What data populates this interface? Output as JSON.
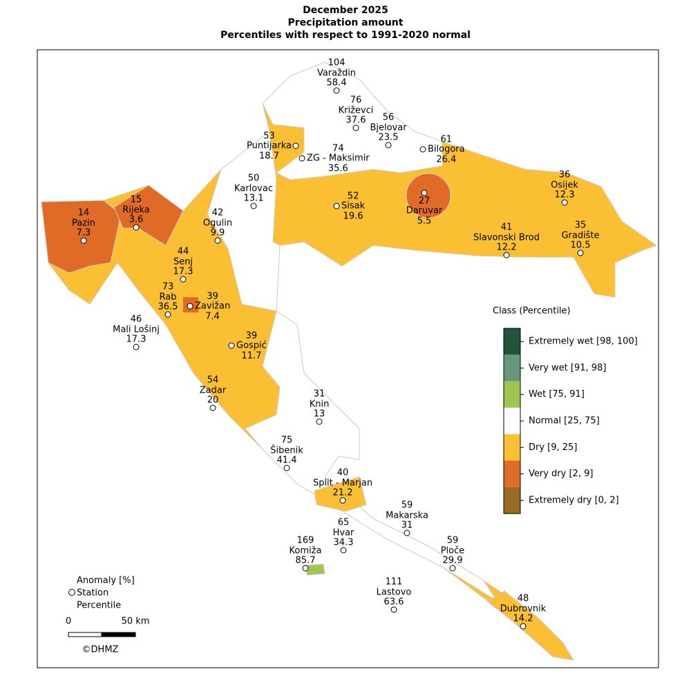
{
  "header": {
    "title": [
      "December 2025",
      "Precipitation amount",
      "Percentiles with respect to 1991-2020 normal"
    ]
  },
  "stations": [
    {
      "name": "Varaždin",
      "anomaly": "104",
      "percentile": "58.4"
    },
    {
      "name": "Križevci",
      "anomaly": "76",
      "percentile": "37.6"
    },
    {
      "name": "Bjelovar",
      "anomaly": "56",
      "percentile": "23.5"
    },
    {
      "name": "Bilogora",
      "anomaly": "61",
      "percentile": "26.4"
    },
    {
      "name": "Puntijarka",
      "anomaly": "53",
      "percentile": "18.7"
    },
    {
      "name": "ZG - Maksimir",
      "anomaly": "74",
      "percentile": "35.6"
    },
    {
      "name": "Karlovac",
      "anomaly": "50",
      "percentile": "13.1"
    },
    {
      "name": "Sisak",
      "anomaly": "52",
      "percentile": "19.6"
    },
    {
      "name": "Daruvar",
      "anomaly": "27",
      "percentile": "5.5"
    },
    {
      "name": "Osijek",
      "anomaly": "36",
      "percentile": "12.3"
    },
    {
      "name": "Slavonski Brod",
      "anomaly": "41",
      "percentile": "12.2"
    },
    {
      "name": "Gradište",
      "anomaly": "35",
      "percentile": "10.5"
    },
    {
      "name": "Rijeka",
      "anomaly": "15",
      "percentile": "3.6"
    },
    {
      "name": "Pazin",
      "anomaly": "14",
      "percentile": "7.3"
    },
    {
      "name": "Ogulin",
      "anomaly": "42",
      "percentile": "9.9"
    },
    {
      "name": "Senj",
      "anomaly": "44",
      "percentile": "17.3"
    },
    {
      "name": "Rab",
      "anomaly": "73",
      "percentile": "36.5"
    },
    {
      "name": "Zavižan",
      "anomaly": "39",
      "percentile": "7.4"
    },
    {
      "name": "Mali Lošinj",
      "anomaly": "46",
      "percentile": "17.3"
    },
    {
      "name": "Gospić",
      "anomaly": "39",
      "percentile": "11.7"
    },
    {
      "name": "Zadar",
      "anomaly": "54",
      "percentile": "20"
    },
    {
      "name": "Knin",
      "anomaly": "31",
      "percentile": "13"
    },
    {
      "name": "Šibenik",
      "anomaly": "75",
      "percentile": "41.4"
    },
    {
      "name": "Split - Marjan",
      "anomaly": "40",
      "percentile": "21.2"
    },
    {
      "name": "Makarska",
      "anomaly": "59",
      "percentile": "31"
    },
    {
      "name": "Hvar",
      "anomaly": "65",
      "percentile": "34.3"
    },
    {
      "name": "Ploče",
      "anomaly": "59",
      "percentile": "29.9"
    },
    {
      "name": "Komiža",
      "anomaly": "169",
      "percentile": "85.7"
    },
    {
      "name": "Lastovo",
      "anomaly": "111",
      "percentile": "63.6"
    },
    {
      "name": "Dubrovnik",
      "anomaly": "48",
      "percentile": "14.2"
    }
  ],
  "legend": {
    "title": "Class (Percentile)",
    "classes": [
      {
        "label": "Extremely wet [98, 100]",
        "color": "#23533a"
      },
      {
        "label": "Very wet [91, 98]",
        "color": "#66977a"
      },
      {
        "label": "Wet [75, 91]",
        "color": "#a2c552"
      },
      {
        "label": "Normal [25, 75]",
        "color": "#ffffff"
      },
      {
        "label": "Dry [9, 25]",
        "color": "#fbbf33"
      },
      {
        "label": "Very dry [2, 9]",
        "color": "#e06b26"
      },
      {
        "label": "Extremely dry [0, 2]",
        "color": "#9a6b22"
      }
    ]
  },
  "key": {
    "lines": [
      "Anomaly [%]",
      "Station",
      "Percentile"
    ]
  },
  "scale": {
    "labels": [
      "0",
      "50 km"
    ]
  },
  "credit": "©DHMZ"
}
